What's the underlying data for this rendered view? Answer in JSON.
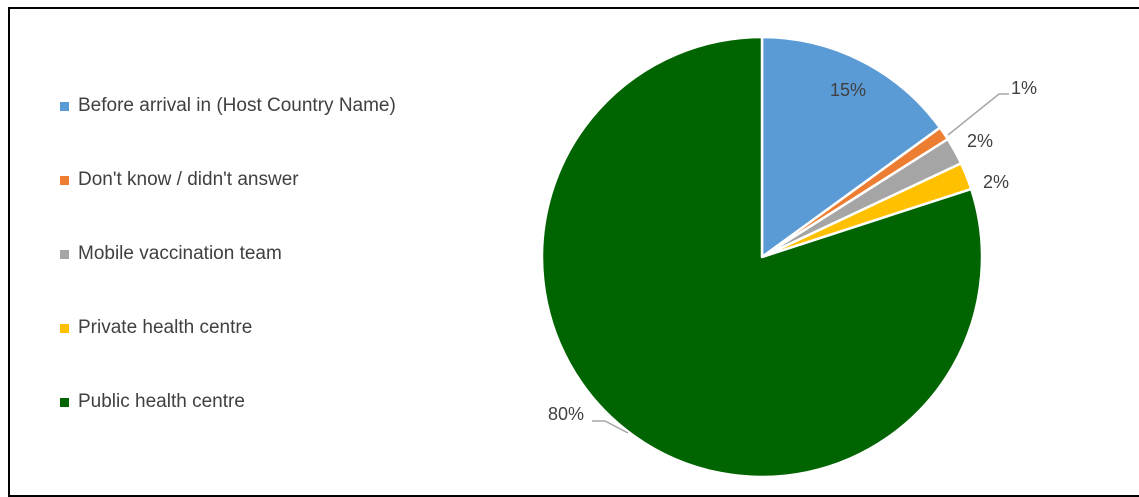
{
  "chart_data": {
    "type": "pie",
    "title": "",
    "legend_position": "left",
    "slices": [
      {
        "label": "Before arrival in (Host Country Name)",
        "value": 15,
        "display": "15%",
        "color": "#5B9BD5"
      },
      {
        "label": "Don't know / didn't answer",
        "value": 1,
        "display": "1%",
        "color": "#ED7D31"
      },
      {
        "label": "Mobile vaccination team",
        "value": 2,
        "display": "2%",
        "color": "#A5A5A5"
      },
      {
        "label": "Private health centre",
        "value": 2,
        "display": "2%",
        "color": "#FFC000"
      },
      {
        "label": "Public health centre",
        "value": 80,
        "display": "80%",
        "color": "#006400"
      }
    ]
  }
}
